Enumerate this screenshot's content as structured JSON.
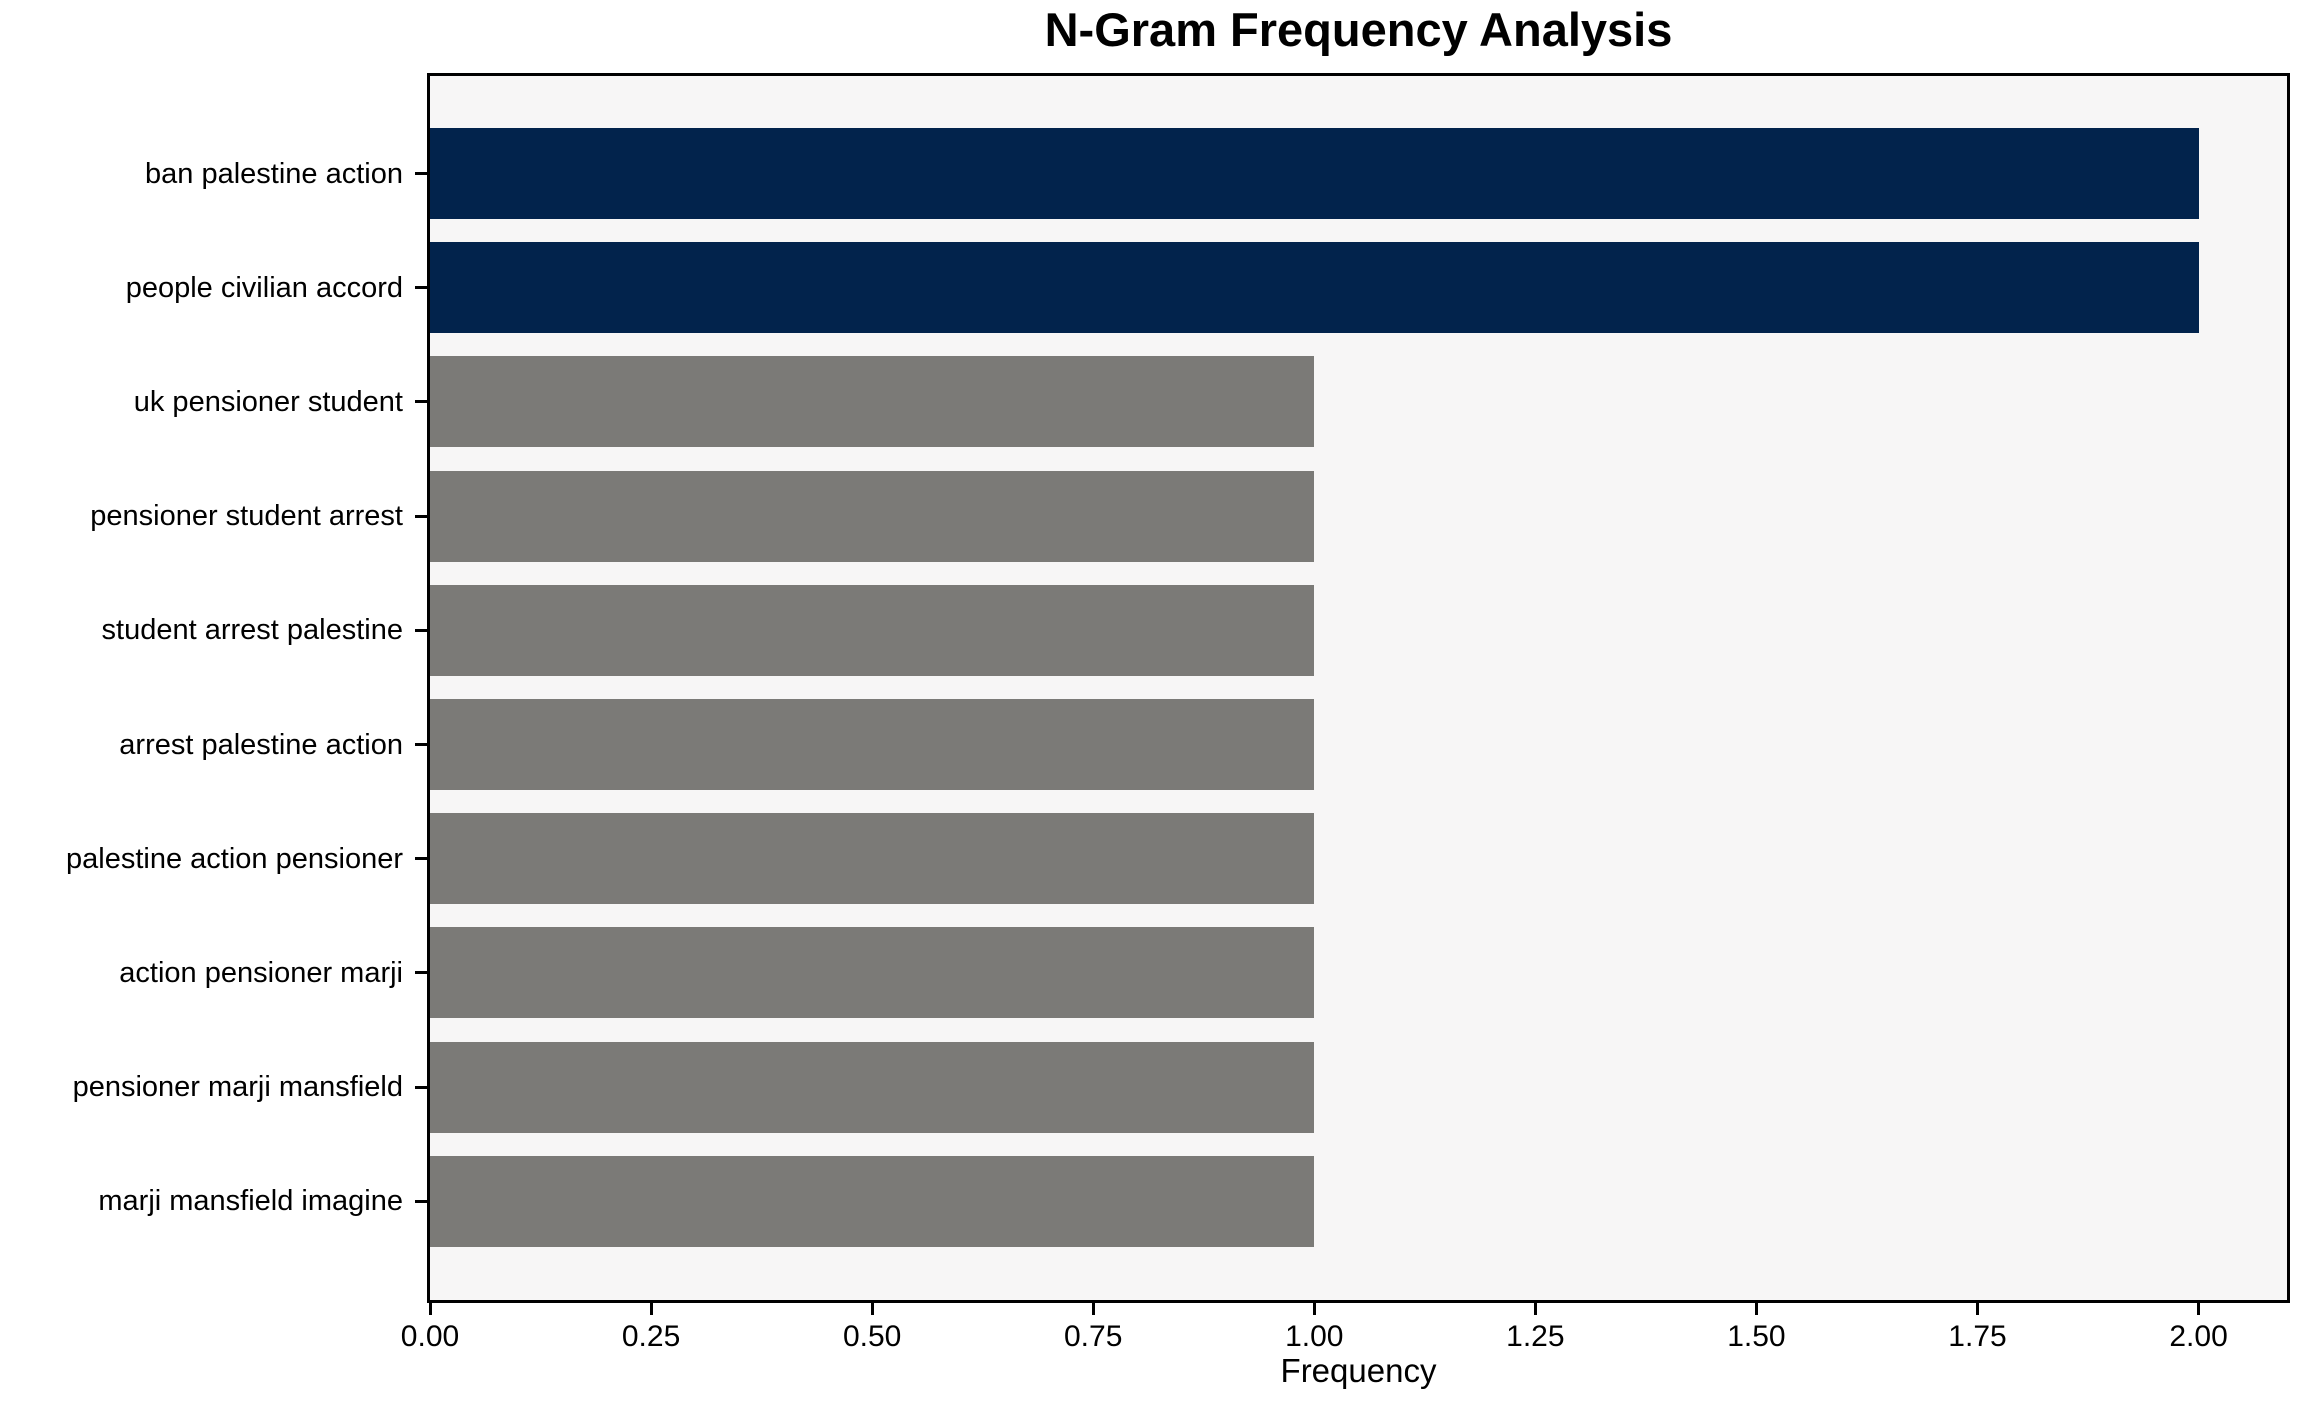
{
  "chart_data": {
    "type": "bar",
    "orientation": "horizontal",
    "title": "N-Gram Frequency Analysis",
    "xlabel": "Frequency",
    "ylabel": "",
    "categories": [
      "ban palestine action",
      "people civilian accord",
      "uk pensioner student",
      "pensioner student arrest",
      "student arrest palestine",
      "arrest palestine action",
      "palestine action pensioner",
      "action pensioner marji",
      "pensioner marji mansfield",
      "marji mansfield imagine"
    ],
    "values": [
      2,
      2,
      1,
      1,
      1,
      1,
      1,
      1,
      1,
      1
    ],
    "bar_colors": [
      "#02234c",
      "#02234c",
      "#7b7a77",
      "#7b7a77",
      "#7b7a77",
      "#7b7a77",
      "#7b7a77",
      "#7b7a77",
      "#7b7a77",
      "#7b7a77"
    ],
    "xlim": [
      0,
      2.1
    ],
    "x_tick_values": [
      0,
      0.25,
      0.5,
      0.75,
      1.0,
      1.25,
      1.5,
      1.75,
      2.0
    ],
    "x_tick_labels": [
      "0.00",
      "0.25",
      "0.50",
      "0.75",
      "1.00",
      "1.25",
      "1.50",
      "1.75",
      "2.00"
    ],
    "grid": false,
    "legend": "none",
    "colors": {
      "highlight": "#02234c",
      "default_bar": "#7b7a77",
      "plot_background": "#f7f6f6",
      "figure_background": "#ffffff",
      "axis": "#000000",
      "text": "#000000"
    }
  }
}
